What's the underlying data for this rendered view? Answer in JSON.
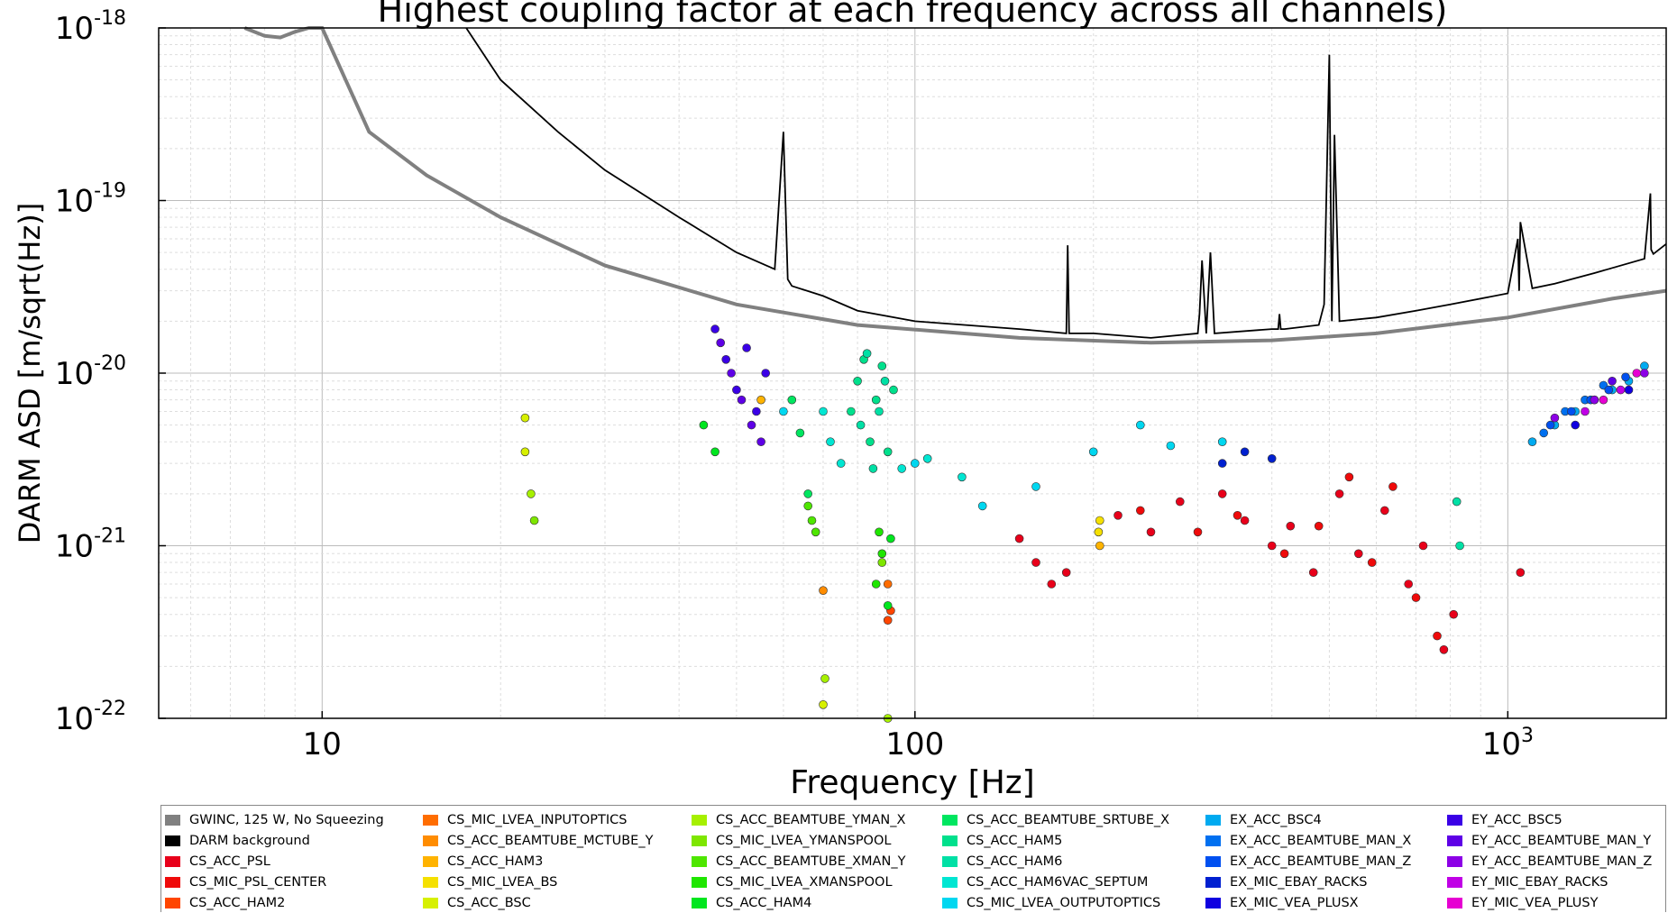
{
  "chart_data": {
    "type": "scatter",
    "title": "Highest coupling factor at each frequency across all channels)",
    "xlabel": "Frequency [Hz]",
    "ylabel": "DARM ASD [m/sqrt(Hz)]",
    "xscale": "log",
    "yscale": "log",
    "xlim": [
      5.3,
      1850
    ],
    "ylim": [
      1e-22,
      1e-18
    ],
    "x_ticks": [
      {
        "value": 10,
        "label": "10"
      },
      {
        "value": 100,
        "label": "100"
      },
      {
        "value": 1000,
        "label": "10",
        "exp": "3"
      }
    ],
    "y_ticks": [
      {
        "value": 1e-18,
        "base": "10",
        "exp": "-18"
      },
      {
        "value": 1e-19,
        "base": "10",
        "exp": "-19"
      },
      {
        "value": 1e-20,
        "base": "10",
        "exp": "-20"
      },
      {
        "value": 1e-21,
        "base": "10",
        "exp": "-21"
      },
      {
        "value": 1e-22,
        "base": "10",
        "exp": "-22"
      }
    ],
    "grid": true,
    "legend_position": "bottom",
    "series": [
      {
        "name": "GWINC, 125 W, No Squeezing",
        "color": "#808080",
        "kind": "line",
        "x": [
          7.4,
          8.0,
          8.5,
          9.0,
          9.5,
          10,
          12,
          15,
          20,
          30,
          50,
          80,
          150,
          250,
          400,
          600,
          1000,
          1500,
          1850
        ],
        "y": [
          1e-18,
          9e-19,
          8.8e-19,
          9.5e-19,
          1e-18,
          1e-18,
          2.5e-19,
          1.4e-19,
          8e-20,
          4.2e-20,
          2.5e-20,
          1.9e-20,
          1.6e-20,
          1.5e-20,
          1.55e-20,
          1.7e-20,
          2.1e-20,
          2.7e-20,
          3e-20
        ]
      },
      {
        "name": "DARM background",
        "color": "#000000",
        "kind": "line",
        "x": [
          17.5,
          20,
          25,
          30,
          40,
          50,
          58,
          60,
          61,
          62,
          70,
          80,
          100,
          150,
          180,
          181,
          182,
          200,
          250,
          300,
          302,
          305,
          310,
          315,
          320,
          400,
          410,
          412,
          414,
          420,
          480,
          490,
          500,
          505,
          510,
          520,
          600,
          700,
          800,
          1000,
          1040,
          1045,
          1050,
          1100,
          1200,
          1400,
          1700,
          1740,
          1745,
          1760,
          1850
        ],
        "y": [
          1e-18,
          5e-19,
          2.5e-19,
          1.5e-19,
          8e-20,
          5e-20,
          4e-20,
          2.5e-19,
          3.5e-20,
          3.2e-20,
          2.8e-20,
          2.3e-20,
          2e-20,
          1.8e-20,
          1.7e-20,
          5.5e-20,
          1.7e-20,
          1.7e-20,
          1.6e-20,
          1.7e-20,
          2.2e-20,
          4.5e-20,
          1.7e-20,
          5e-20,
          1.7e-20,
          1.8e-20,
          1.8e-20,
          2.2e-20,
          1.8e-20,
          1.8e-20,
          1.9e-20,
          2.5e-20,
          7e-19,
          2e-20,
          2.4e-19,
          2e-20,
          2.1e-20,
          2.3e-20,
          2.5e-20,
          2.9e-20,
          6e-20,
          3e-20,
          7.5e-20,
          3.1e-20,
          3.3e-20,
          3.8e-20,
          4.6e-20,
          1.1e-19,
          5.2e-20,
          4.9e-20,
          5.6e-20
        ]
      },
      {
        "name": "CS_ACC_PSL",
        "color": "#e8001a",
        "x": [
          150,
          160,
          170,
          180,
          220,
          250,
          280,
          330,
          360,
          400,
          430,
          470,
          520,
          560,
          620,
          680,
          720,
          780,
          810,
          1050
        ],
        "y": [
          1.1e-21,
          8e-22,
          6e-22,
          7e-22,
          1.5e-21,
          1.2e-21,
          1.8e-21,
          2e-21,
          1.4e-21,
          1e-21,
          1.3e-21,
          7e-22,
          2e-21,
          9e-22,
          1.6e-21,
          6e-22,
          1e-21,
          2.5e-22,
          4e-22,
          7e-22
        ]
      },
      {
        "name": "CS_MIC_PSL_CENTER",
        "color": "#ef0a0a",
        "x": [
          240,
          300,
          350,
          420,
          480,
          540,
          590,
          640,
          700,
          760
        ],
        "y": [
          1.6e-21,
          1.2e-21,
          1.5e-21,
          9e-22,
          1.3e-21,
          2.5e-21,
          8e-22,
          2.2e-21,
          5e-22,
          3e-22
        ]
      },
      {
        "name": "CS_ACC_HAM2",
        "color": "#ff4500",
        "x": [
          90,
          91
        ],
        "y": [
          3.7e-22,
          4.2e-22
        ]
      },
      {
        "name": "CS_MIC_LVEA_INPUTOPTICS",
        "color": "#ff6d00",
        "x": [
          90
        ],
        "y": [
          6e-22
        ]
      },
      {
        "name": "CS_ACC_BEAMTUBE_MCTUBE_Y",
        "color": "#ff8c00",
        "x": [
          70
        ],
        "y": [
          5.5e-22
        ]
      },
      {
        "name": "CS_ACC_HAM3",
        "color": "#ffb300",
        "x": [
          205,
          55
        ],
        "y": [
          1e-21,
          7e-21
        ]
      },
      {
        "name": "CS_MIC_LVEA_BS",
        "color": "#f5e000",
        "x": [
          205,
          204
        ],
        "y": [
          1.4e-21,
          1.2e-21
        ]
      },
      {
        "name": "CS_ACC_BSC",
        "color": "#d7f000",
        "x": [
          22,
          22,
          70
        ],
        "y": [
          5.5e-21,
          3.5e-21,
          1.2e-22
        ]
      },
      {
        "name": "CS_ACC_BEAMTUBE_YMAN_X",
        "color": "#a6f000",
        "x": [
          22.5,
          70.5,
          90
        ],
        "y": [
          2e-21,
          1.7e-22,
          1e-22
        ]
      },
      {
        "name": "CS_MIC_LVEA_YMANSPOOL",
        "color": "#7ee600",
        "x": [
          22.8,
          88
        ],
        "y": [
          1.4e-21,
          8e-22
        ]
      },
      {
        "name": "CS_ACC_BEAMTUBE_XMAN_Y",
        "color": "#4ee600",
        "x": [
          66,
          67,
          68
        ],
        "y": [
          1.7e-21,
          1.4e-21,
          1.2e-21
        ]
      },
      {
        "name": "CS_MIC_LVEA_XMANSPOOL",
        "color": "#1fe600",
        "x": [
          86,
          87,
          88
        ],
        "y": [
          6e-22,
          1.2e-21,
          9e-22
        ]
      },
      {
        "name": "CS_ACC_HAM4",
        "color": "#00e61f",
        "x": [
          90,
          91,
          44,
          46
        ],
        "y": [
          4.5e-22,
          1.1e-21,
          5e-21,
          3.5e-21
        ]
      },
      {
        "name": "CS_ACC_BEAMTUBE_SRTUBE_X",
        "color": "#00e660",
        "x": [
          62,
          64,
          66
        ],
        "y": [
          7e-21,
          4.5e-21,
          2e-21
        ]
      },
      {
        "name": "CS_ACC_HAM5",
        "color": "#00e08c",
        "x": [
          78,
          80,
          82,
          84,
          86,
          88,
          90,
          92
        ],
        "y": [
          6e-21,
          9e-21,
          1.2e-20,
          4e-21,
          7e-21,
          1.1e-20,
          3.5e-21,
          8e-21
        ]
      },
      {
        "name": "CS_ACC_HAM6",
        "color": "#00e0a5",
        "x": [
          81,
          83,
          85,
          87,
          89,
          820,
          830
        ],
        "y": [
          5e-21,
          1.3e-20,
          2.8e-21,
          6e-21,
          9e-21,
          1.8e-21,
          1e-21
        ]
      },
      {
        "name": "CS_ACC_HAM6VAC_SEPTUM",
        "color": "#00e6d2",
        "x": [
          70,
          72,
          75,
          95,
          105,
          120
        ],
        "y": [
          6e-21,
          4e-21,
          3e-21,
          2.8e-21,
          3.2e-21,
          2.5e-21
        ]
      },
      {
        "name": "CS_MIC_LVEA_OUTPUTOPTICS",
        "color": "#00d7f0",
        "x": [
          60,
          100,
          130,
          160,
          200,
          240,
          270,
          330
        ],
        "y": [
          6e-21,
          3e-21,
          1.7e-21,
          2.2e-21,
          3.5e-21,
          5e-21,
          3.8e-21,
          4e-21
        ]
      },
      {
        "name": "EX_ACC_BSC4",
        "color": "#00aaf0",
        "x": [
          1100,
          1200,
          1300,
          1400,
          1500,
          1600,
          1700
        ],
        "y": [
          4e-21,
          5e-21,
          6e-21,
          7e-21,
          8e-21,
          9e-21,
          1.1e-20
        ]
      },
      {
        "name": "EX_ACC_BEAMTUBE_MAN_X",
        "color": "#0070f0",
        "x": [
          1150,
          1250,
          1350,
          1450
        ],
        "y": [
          4.5e-21,
          6e-21,
          7e-21,
          8.5e-21
        ]
      },
      {
        "name": "EX_ACC_BEAMTUBE_MAN_Z",
        "color": "#0050f0",
        "x": [
          1180,
          1280,
          1380,
          1480,
          1580
        ],
        "y": [
          5e-21,
          6e-21,
          7e-21,
          8e-21,
          9.5e-21
        ]
      },
      {
        "name": "EX_MIC_EBAY_RACKS",
        "color": "#0020d0",
        "x": [
          330,
          360,
          400
        ],
        "y": [
          3e-21,
          3.5e-21,
          3.2e-21
        ]
      },
      {
        "name": "EX_MIC_VEA_PLUSX",
        "color": "#1000e0",
        "x": [
          1300,
          1600
        ],
        "y": [
          5e-21,
          8e-21
        ]
      },
      {
        "name": "EY_ACC_BSC5",
        "color": "#3a00e6",
        "x": [
          46,
          48,
          50,
          52,
          54,
          56
        ],
        "y": [
          1.8e-20,
          1.2e-20,
          8e-21,
          1.4e-20,
          6e-21,
          1e-20
        ]
      },
      {
        "name": "EY_ACC_BEAMTUBE_MAN_Y",
        "color": "#5e00e6",
        "x": [
          47,
          49,
          51,
          53,
          55,
          1500
        ],
        "y": [
          1.5e-20,
          1e-20,
          7e-21,
          5e-21,
          4e-21,
          9e-21
        ]
      },
      {
        "name": "EY_ACC_BEAMTUBE_MAN_Z",
        "color": "#8c00e6",
        "x": [
          1200,
          1400,
          1700
        ],
        "y": [
          5.5e-21,
          7e-21,
          1e-20
        ]
      },
      {
        "name": "EY_MIC_EBAY_RACKS",
        "color": "#c000e6",
        "x": [
          1350,
          1550
        ],
        "y": [
          6e-21,
          8e-21
        ]
      },
      {
        "name": "EY_MIC_VEA_PLUSY",
        "color": "#e600d2",
        "x": [
          1450,
          1650
        ],
        "y": [
          7e-21,
          1e-20
        ]
      }
    ]
  }
}
